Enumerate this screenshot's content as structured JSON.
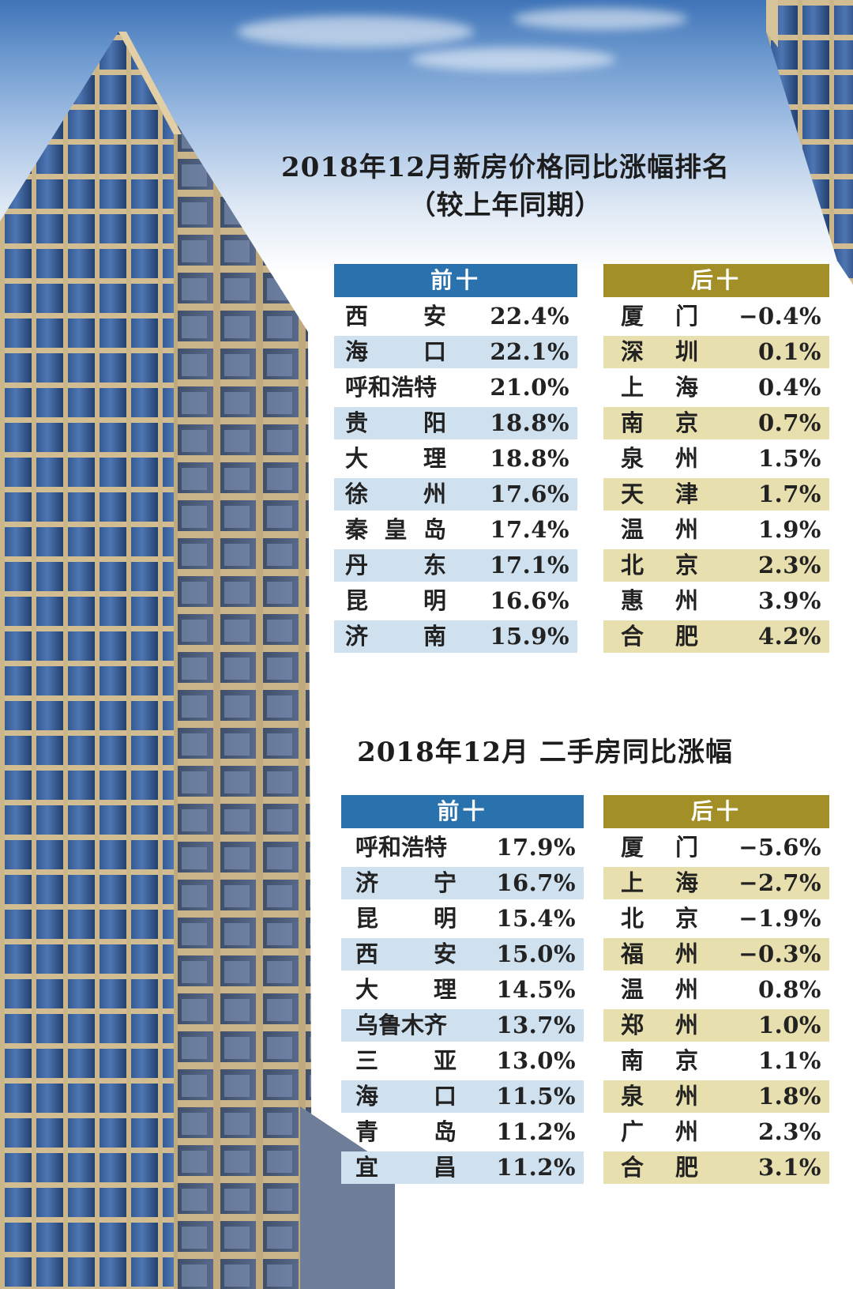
{
  "new_house": {
    "title": "2018年12月新房价格同比涨幅排名",
    "subtitle": "（较上年同期）",
    "top": {
      "header": "前十",
      "rows": [
        {
          "city": "西安",
          "value": "22.4%"
        },
        {
          "city": "海口",
          "value": "22.1%"
        },
        {
          "city": "呼和浩特",
          "value": "21.0%"
        },
        {
          "city": "贵阳",
          "value": "18.8%"
        },
        {
          "city": "大理",
          "value": "18.8%"
        },
        {
          "city": "徐州",
          "value": "17.6%"
        },
        {
          "city": "秦皇岛",
          "value": "17.4%"
        },
        {
          "city": "丹东",
          "value": "17.1%"
        },
        {
          "city": "昆明",
          "value": "16.6%"
        },
        {
          "city": "济南",
          "value": "15.9%"
        }
      ]
    },
    "bottom": {
      "header": "后十",
      "rows": [
        {
          "city": "厦门",
          "value": "−0.4%"
        },
        {
          "city": "深圳",
          "value": "0.1%"
        },
        {
          "city": "上海",
          "value": "0.4%"
        },
        {
          "city": "南京",
          "value": "0.7%"
        },
        {
          "city": "泉州",
          "value": "1.5%"
        },
        {
          "city": "天津",
          "value": "1.7%"
        },
        {
          "city": "温州",
          "value": "1.9%"
        },
        {
          "city": "北京",
          "value": "2.3%"
        },
        {
          "city": "惠州",
          "value": "3.9%"
        },
        {
          "city": "合肥",
          "value": "4.2%"
        }
      ]
    }
  },
  "second_hand": {
    "title": "2018年12月 二手房同比涨幅",
    "top": {
      "header": "前十",
      "rows": [
        {
          "city": "呼和浩特",
          "value": "17.9%"
        },
        {
          "city": "济宁",
          "value": "16.7%"
        },
        {
          "city": "昆明",
          "value": "15.4%"
        },
        {
          "city": "西安",
          "value": "15.0%"
        },
        {
          "city": "大理",
          "value": "14.5%"
        },
        {
          "city": "乌鲁木齐",
          "value": "13.7%"
        },
        {
          "city": "三亚",
          "value": "13.0%"
        },
        {
          "city": "海口",
          "value": "11.5%"
        },
        {
          "city": "青岛",
          "value": "11.2%"
        },
        {
          "city": "宜昌",
          "value": "11.2%"
        }
      ]
    },
    "bottom": {
      "header": "后十",
      "rows": [
        {
          "city": "厦门",
          "value": "−5.6%"
        },
        {
          "city": "上海",
          "value": "−2.7%"
        },
        {
          "city": "北京",
          "value": "−1.9%"
        },
        {
          "city": "福州",
          "value": "−0.3%"
        },
        {
          "city": "温州",
          "value": "0.8%"
        },
        {
          "city": "郑州",
          "value": "1.0%"
        },
        {
          "city": "南京",
          "value": "1.1%"
        },
        {
          "city": "泉州",
          "value": "1.8%"
        },
        {
          "city": "广州",
          "value": "2.3%"
        },
        {
          "city": "合肥",
          "value": "3.1%"
        }
      ]
    }
  },
  "colors": {
    "top_header": "#2a72ad",
    "bottom_header": "#a28f28",
    "top_stripe": "#cfe0ee",
    "bottom_stripe": "#e8dfae"
  }
}
